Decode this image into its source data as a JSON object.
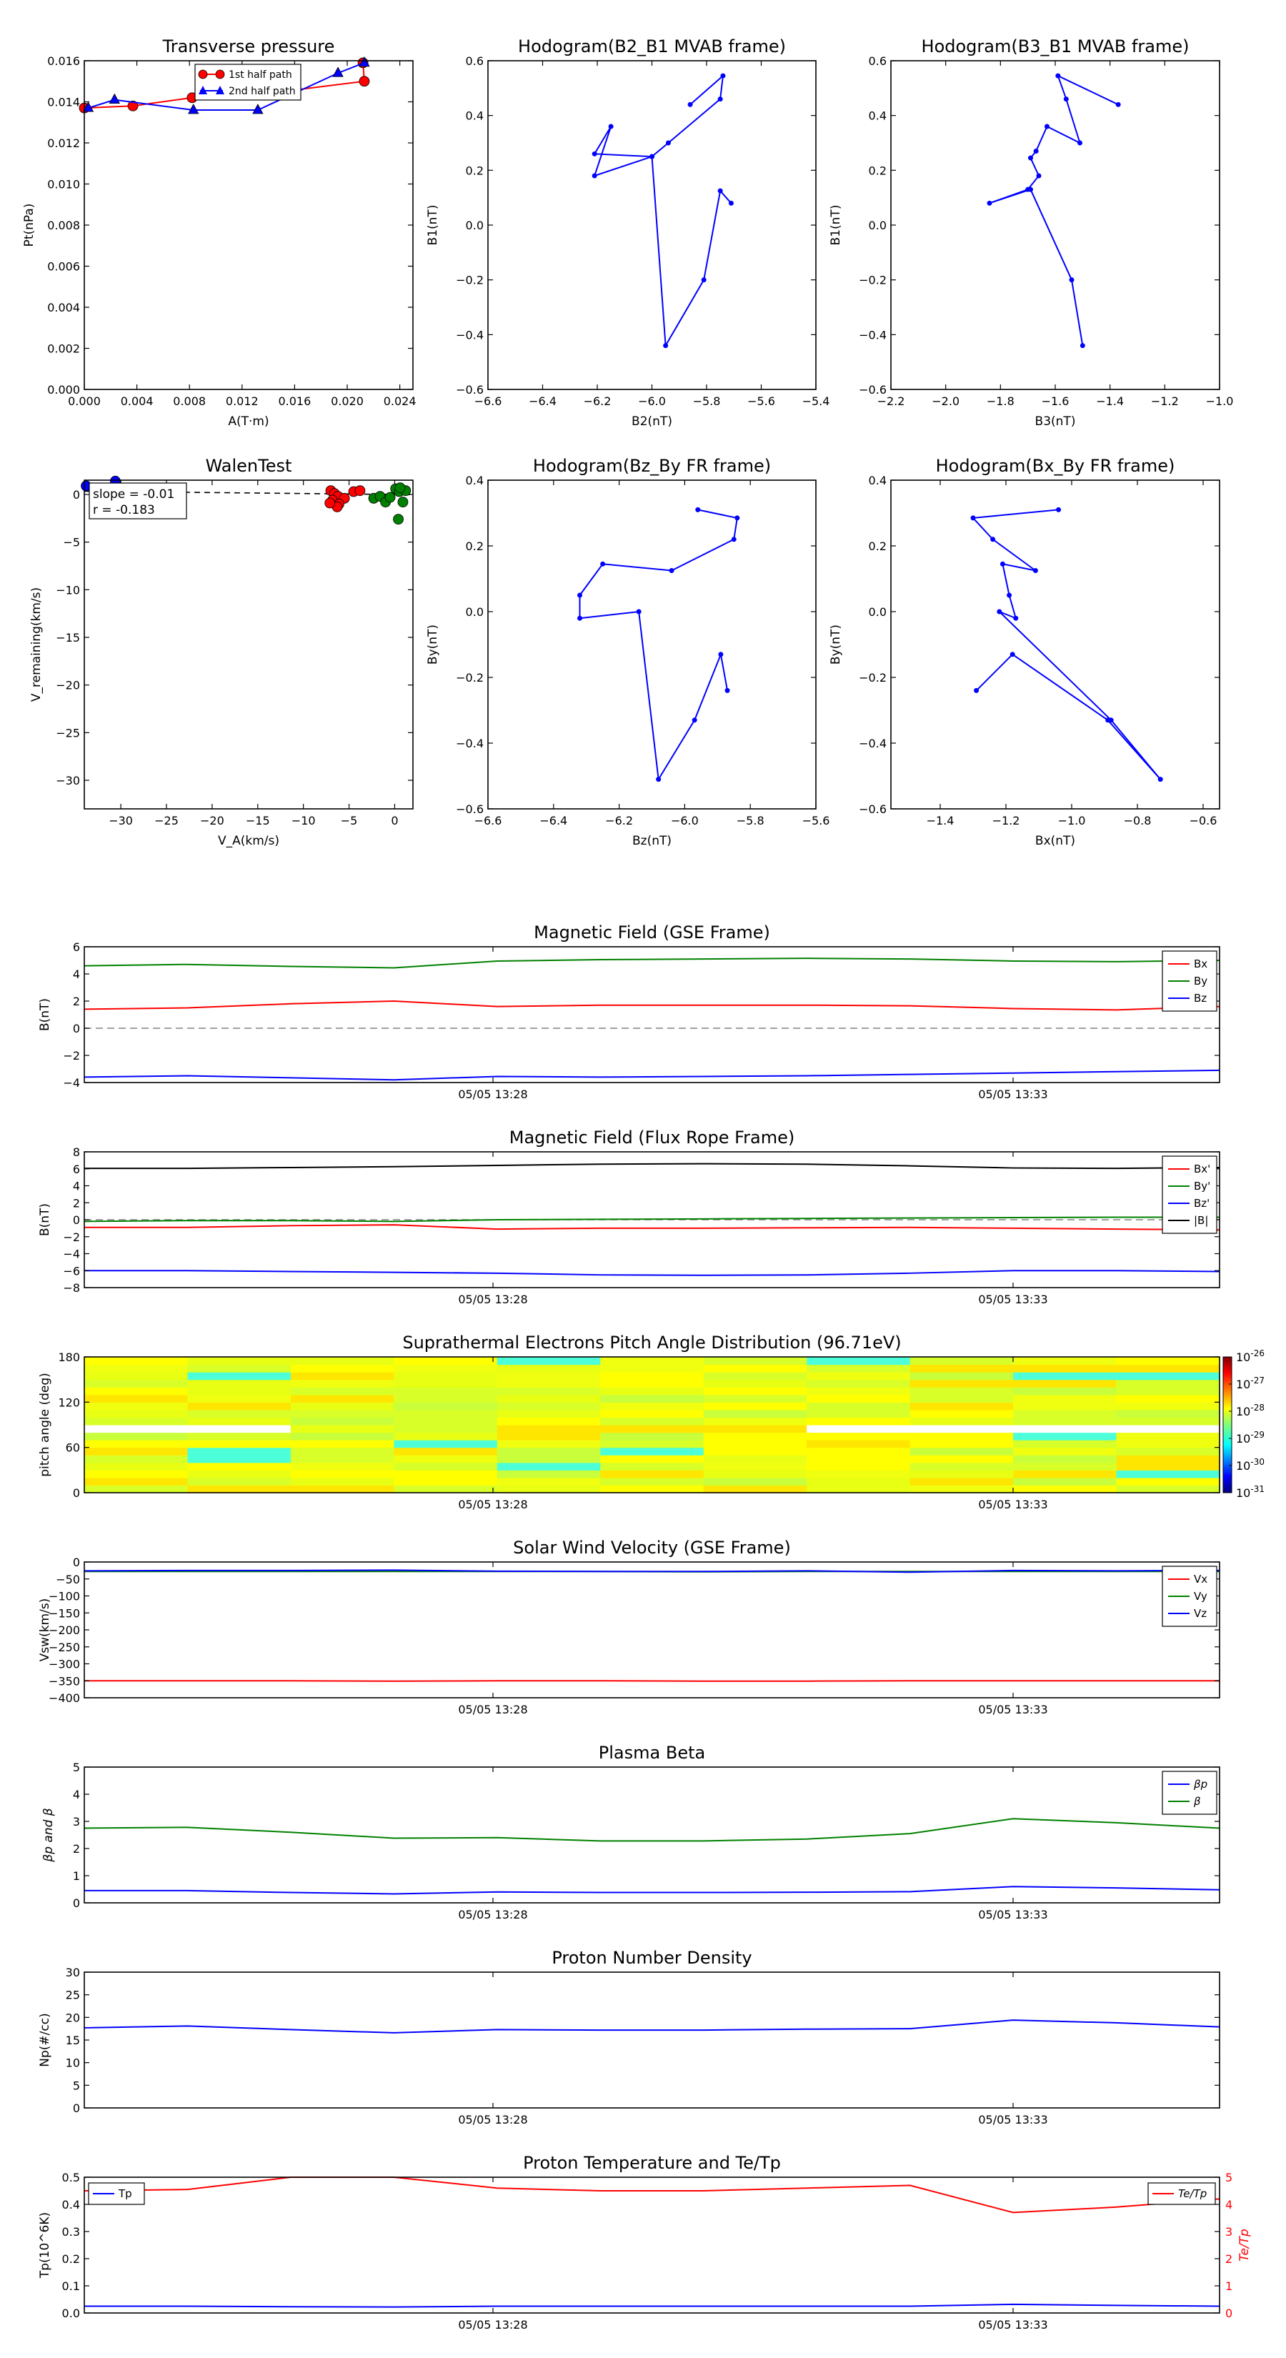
{
  "colors": {
    "red": "#ff0000",
    "green": "#008000",
    "blue": "#0000ff",
    "black": "#000000",
    "grey": "#808080"
  },
  "time_ticks": [
    "05/05 13:28",
    "05/05 13:33"
  ],
  "chart_data": [
    {
      "id": "transverse-pressure",
      "type": "line",
      "title": "Transverse pressure",
      "xlabel": "A(T·m)",
      "ylabel": "Pt(nPa)",
      "xlim": [
        0,
        0.025
      ],
      "ylim": [
        0,
        0.016
      ],
      "xticks": [
        0,
        0.004,
        0.008,
        0.012,
        0.016,
        0.02,
        0.024
      ],
      "xtick_labels": [
        "0.000",
        "0.004",
        "0.008",
        "0.012",
        "0.016",
        "0.020",
        "0.024"
      ],
      "yticks": [
        0,
        0.002,
        0.004,
        0.006,
        0.008,
        0.01,
        0.012,
        0.014,
        0.016
      ],
      "ytick_labels": [
        "0.000",
        "0.002",
        "0.004",
        "0.006",
        "0.008",
        "0.010",
        "0.012",
        "0.014",
        "0.016"
      ],
      "legend": "top-center",
      "series": [
        {
          "name": "1st half path",
          "color": "red",
          "marker": "circle",
          "x": [
            0.0,
            0.0037,
            0.0082,
            0.0138,
            0.0213,
            0.0212
          ],
          "y": [
            0.0137,
            0.0138,
            0.0142,
            0.0144,
            0.015,
            0.0159
          ]
        },
        {
          "name": "2nd half path",
          "color": "blue",
          "marker": "triangle",
          "x": [
            0.0213,
            0.0193,
            0.0132,
            0.0083,
            0.0023,
            0.0003
          ],
          "y": [
            0.0159,
            0.0154,
            0.0136,
            0.0136,
            0.0141,
            0.0137
          ]
        }
      ]
    },
    {
      "id": "hodogram-b2-b1",
      "type": "line",
      "title": "Hodogram(B2_B1 MVAB frame)",
      "xlabel": "B2(nT)",
      "ylabel": "B1(nT)",
      "xlim": [
        -6.6,
        -5.4
      ],
      "ylim": [
        -0.6,
        0.6
      ],
      "xticks": [
        -6.6,
        -6.4,
        -6.2,
        -6.0,
        -5.8,
        -5.6,
        -5.4
      ],
      "xtick_labels": [
        "−6.6",
        "−6.4",
        "−6.2",
        "−6.0",
        "−5.8",
        "−5.6",
        "−5.4"
      ],
      "yticks": [
        -0.6,
        -0.4,
        -0.2,
        0.0,
        0.2,
        0.4,
        0.6
      ],
      "ytick_labels": [
        "−0.6",
        "−0.4",
        "−0.2",
        "0.0",
        "0.2",
        "0.4",
        "0.6"
      ],
      "series": [
        {
          "name": "hodogram",
          "color": "blue",
          "marker": "dot",
          "x": [
            -5.86,
            -5.74,
            -5.75,
            -5.94,
            -6.0,
            -6.21,
            -6.15,
            -6.21,
            -6.0,
            -5.95,
            -5.81,
            -5.75,
            -5.71
          ],
          "y": [
            0.44,
            0.545,
            0.46,
            0.3,
            0.25,
            0.18,
            0.36,
            0.26,
            0.25,
            -0.44,
            -0.2,
            0.125,
            0.08
          ]
        }
      ]
    },
    {
      "id": "hodogram-b3-b1",
      "type": "line",
      "title": "Hodogram(B3_B1 MVAB frame)",
      "xlabel": "B3(nT)",
      "ylabel": "B1(nT)",
      "xlim": [
        -2.2,
        -1.0
      ],
      "ylim": [
        -0.6,
        0.6
      ],
      "xticks": [
        -2.2,
        -2.0,
        -1.8,
        -1.6,
        -1.4,
        -1.2,
        -1.0
      ],
      "xtick_labels": [
        "−2.2",
        "−2.0",
        "−1.8",
        "−1.6",
        "−1.4",
        "−1.2",
        "−1.0"
      ],
      "yticks": [
        -0.6,
        -0.4,
        -0.2,
        0.0,
        0.2,
        0.4,
        0.6
      ],
      "ytick_labels": [
        "−0.6",
        "−0.4",
        "−0.2",
        "0.0",
        "0.2",
        "0.4",
        "0.6"
      ],
      "series": [
        {
          "name": "hodogram",
          "color": "blue",
          "marker": "dot",
          "x": [
            -1.37,
            -1.59,
            -1.56,
            -1.51,
            -1.63,
            -1.67,
            -1.69,
            -1.66,
            -1.7,
            -1.84,
            -1.69,
            -1.54,
            -1.5
          ],
          "y": [
            0.44,
            0.545,
            0.46,
            0.3,
            0.36,
            0.27,
            0.245,
            0.18,
            0.13,
            0.08,
            0.13,
            -0.2,
            -0.44
          ]
        }
      ]
    },
    {
      "id": "walen-test",
      "type": "scatter",
      "title": "WalenTest",
      "xlabel": "V_A(km/s)",
      "ylabel": "V_remaining(km/s)",
      "xlim": [
        -34,
        2
      ],
      "ylim": [
        -33,
        1.5
      ],
      "xticks": [
        -30,
        -25,
        -20,
        -15,
        -10,
        -5,
        0
      ],
      "xtick_labels": [
        "−30",
        "−25",
        "−20",
        "−15",
        "−10",
        "−5",
        "0"
      ],
      "yticks": [
        -30,
        -25,
        -20,
        -15,
        -10,
        -5,
        0
      ],
      "ytick_labels": [
        "−30",
        "−25",
        "−20",
        "−15",
        "−10",
        "−5",
        "0"
      ],
      "annotation": {
        "slope": "slope = -0.01",
        "r": "r = -0.183"
      },
      "fit_line": {
        "x": [
          -34,
          2
        ],
        "y": [
          0.34,
          -0.02
        ]
      },
      "series": [
        {
          "name": "red",
          "color": "red",
          "marker": "circle",
          "x": [
            -7.0,
            -6.6,
            -6.2,
            -6.8,
            -5.5,
            -6.1,
            -4.5,
            -3.8,
            -6.3,
            -7.1
          ],
          "y": [
            0.4,
            0.1,
            -0.2,
            -0.6,
            -0.4,
            -1.0,
            0.3,
            0.4,
            -1.3,
            -0.9
          ]
        },
        {
          "name": "green",
          "color": "green",
          "marker": "circle",
          "x": [
            -2.3,
            -1.6,
            -1.0,
            -0.5,
            0.1,
            0.5,
            0.9,
            1.2,
            0.4,
            0.6
          ],
          "y": [
            -0.4,
            -0.2,
            -0.8,
            -0.3,
            0.6,
            0.3,
            -0.8,
            0.4,
            -2.6,
            0.7
          ]
        },
        {
          "name": "blue",
          "color": "blue",
          "marker": "circle",
          "x": [
            -33.8,
            -30.6
          ],
          "y": [
            0.9,
            1.4
          ]
        }
      ]
    },
    {
      "id": "hodogram-bz-by",
      "type": "line",
      "title": "Hodogram(Bz_By FR frame)",
      "xlabel": "Bz(nT)",
      "ylabel": "By(nT)",
      "xlim": [
        -6.6,
        -5.6
      ],
      "ylim": [
        -0.6,
        0.4
      ],
      "xticks": [
        -6.6,
        -6.4,
        -6.2,
        -6.0,
        -5.8,
        -5.6
      ],
      "xtick_labels": [
        "−6.6",
        "−6.4",
        "−6.2",
        "−6.0",
        "−5.8",
        "−5.6"
      ],
      "yticks": [
        -0.6,
        -0.4,
        -0.2,
        0.0,
        0.2,
        0.4
      ],
      "ytick_labels": [
        "−0.6",
        "−0.4",
        "−0.2",
        "0.0",
        "0.2",
        "0.4"
      ],
      "series": [
        {
          "name": "hodogram",
          "color": "blue",
          "marker": "dot",
          "x": [
            -5.96,
            -5.84,
            -5.85,
            -6.04,
            -6.25,
            -6.32,
            -6.32,
            -6.14,
            -6.08,
            -5.97,
            -5.89,
            -5.87
          ],
          "y": [
            0.31,
            0.285,
            0.22,
            0.125,
            0.145,
            0.05,
            -0.02,
            0.0,
            -0.51,
            -0.33,
            -0.13,
            -0.24
          ]
        }
      ]
    },
    {
      "id": "hodogram-bx-by",
      "type": "line",
      "title": "Hodogram(Bx_By FR frame)",
      "xlabel": "Bx(nT)",
      "ylabel": "By(nT)",
      "xlim": [
        -1.55,
        -0.55
      ],
      "ylim": [
        -0.6,
        0.4
      ],
      "xticks": [
        -1.4,
        -1.2,
        -1.0,
        -0.8,
        -0.6
      ],
      "xtick_labels": [
        "−1.4",
        "−1.2",
        "−1.0",
        "−0.8",
        "−0.6"
      ],
      "yticks": [
        -0.6,
        -0.4,
        -0.2,
        0.0,
        0.2,
        0.4
      ],
      "ytick_labels": [
        "−0.6",
        "−0.4",
        "−0.2",
        "0.0",
        "0.2",
        "0.4"
      ],
      "series": [
        {
          "name": "hodogram",
          "color": "blue",
          "marker": "dot",
          "x": [
            -1.04,
            -1.3,
            -1.24,
            -1.11,
            -1.21,
            -1.19,
            -1.17,
            -1.22,
            -0.88,
            -0.73,
            -0.89,
            -1.18,
            -1.29
          ],
          "y": [
            0.31,
            0.285,
            0.22,
            0.125,
            0.145,
            0.05,
            -0.02,
            0.0,
            -0.33,
            -0.51,
            -0.33,
            -0.13,
            -0.24
          ]
        }
      ]
    },
    {
      "id": "mag-gse",
      "type": "line",
      "title": "Magnetic Field (GSE Frame)",
      "ylabel": "B(nT)",
      "ylim": [
        -4,
        6
      ],
      "yticks": [
        -4,
        -2,
        0,
        2,
        4,
        6
      ],
      "ytick_labels": [
        "−4",
        "−2",
        "0",
        "2",
        "4",
        "6"
      ],
      "zero_line": true,
      "legend": "top-right",
      "series": [
        {
          "name": "Bx",
          "color": "red",
          "y": [
            1.4,
            1.5,
            1.8,
            2.0,
            1.6,
            1.7,
            1.7,
            1.7,
            1.65,
            1.45,
            1.35,
            1.6
          ]
        },
        {
          "name": "By",
          "color": "green",
          "y": [
            4.6,
            4.7,
            4.55,
            4.45,
            4.95,
            5.05,
            5.1,
            5.15,
            5.1,
            4.95,
            4.9,
            5.0
          ]
        },
        {
          "name": "Bz",
          "color": "blue",
          "y": [
            -3.6,
            -3.5,
            -3.65,
            -3.8,
            -3.55,
            -3.6,
            -3.55,
            -3.5,
            -3.4,
            -3.3,
            -3.2,
            -3.1
          ]
        }
      ]
    },
    {
      "id": "mag-fr",
      "type": "line",
      "title": "Magnetic Field (Flux Rope Frame)",
      "ylabel": "B(nT)",
      "ylim": [
        -8,
        8
      ],
      "yticks": [
        -8,
        -6,
        -4,
        -2,
        0,
        2,
        4,
        6,
        8
      ],
      "ytick_labels": [
        "−8",
        "−6",
        "−4",
        "−2",
        "0",
        "2",
        "4",
        "6",
        "8"
      ],
      "zero_line": true,
      "legend": "top-right",
      "series": [
        {
          "name": "Bx'",
          "color": "red",
          "y": [
            -0.9,
            -0.9,
            -0.7,
            -0.6,
            -1.1,
            -1.0,
            -1.0,
            -0.95,
            -0.9,
            -1.0,
            -1.1,
            -1.2
          ]
        },
        {
          "name": "By'",
          "color": "green",
          "y": [
            -0.2,
            -0.1,
            -0.1,
            -0.2,
            0.0,
            0.05,
            0.1,
            0.15,
            0.2,
            0.25,
            0.3,
            0.3
          ]
        },
        {
          "name": "Bz'",
          "color": "blue",
          "y": [
            -6.0,
            -6.0,
            -6.1,
            -6.2,
            -6.3,
            -6.5,
            -6.55,
            -6.5,
            -6.3,
            -6.0,
            -6.0,
            -6.1
          ]
        },
        {
          "name": "|B|",
          "color": "black",
          "y": [
            6.05,
            6.05,
            6.15,
            6.25,
            6.4,
            6.55,
            6.6,
            6.55,
            6.35,
            6.1,
            6.05,
            6.15
          ]
        }
      ]
    },
    {
      "id": "pad",
      "type": "heatmap",
      "title": "Suprathermal Electrons Pitch Angle Distribution (96.71eV)",
      "ylabel": "pitch angle (deg)",
      "ylim": [
        0,
        180
      ],
      "yticks": [
        0,
        60,
        120,
        180
      ],
      "ytick_labels": [
        "0",
        "60",
        "120",
        "180"
      ],
      "colorbar_labels": [
        "10^-26",
        "10^-27",
        "10^-28",
        "10^-29",
        "10^-30",
        "10^-31"
      ],
      "colorbar_exponents": [
        "-26",
        "-27",
        "-28",
        "-29",
        "-30",
        "-31"
      ],
      "colorbar_range": [
        -31,
        -26
      ]
    },
    {
      "id": "velocity",
      "type": "line",
      "title": "Solar Wind Velocity (GSE Frame)",
      "ylabel": "Vsw(km/s)",
      "ylim": [
        -400,
        0
      ],
      "yticks": [
        -400,
        -350,
        -300,
        -250,
        -200,
        -150,
        -100,
        -50,
        0
      ],
      "ytick_labels": [
        "−400",
        "−350",
        "−300",
        "−250",
        "−200",
        "−150",
        "−100",
        "−50",
        "0"
      ],
      "legend": "top-right",
      "series": [
        {
          "name": "Vx",
          "color": "red",
          "y": [
            -350,
            -350,
            -350,
            -351,
            -350,
            -350,
            -351,
            -351,
            -350,
            -350,
            -350,
            -350
          ]
        },
        {
          "name": "Vy",
          "color": "green",
          "y": [
            -28,
            -28,
            -28,
            -28,
            -28,
            -28,
            -29,
            -28,
            -28,
            -28,
            -28,
            -28
          ]
        },
        {
          "name": "Vz",
          "color": "blue",
          "y": [
            -26,
            -25,
            -25,
            -24,
            -27,
            -28,
            -28,
            -26,
            -30,
            -25,
            -26,
            -25
          ]
        }
      ]
    },
    {
      "id": "beta",
      "type": "line",
      "title": "Plasma Beta",
      "ylabel": "βp and β",
      "ylim": [
        0,
        5
      ],
      "yticks": [
        0,
        1,
        2,
        3,
        4,
        5
      ],
      "ytick_labels": [
        "0",
        "1",
        "2",
        "3",
        "4",
        "5"
      ],
      "legend": "top-right",
      "series": [
        {
          "name": "βp",
          "color": "blue",
          "y": [
            0.45,
            0.45,
            0.38,
            0.33,
            0.4,
            0.38,
            0.38,
            0.39,
            0.41,
            0.6,
            0.55,
            0.48
          ]
        },
        {
          "name": "β",
          "color": "green",
          "y": [
            2.75,
            2.78,
            2.6,
            2.38,
            2.4,
            2.28,
            2.28,
            2.35,
            2.55,
            3.1,
            2.95,
            2.75
          ]
        }
      ]
    },
    {
      "id": "density",
      "type": "line",
      "title": "Proton Number Density",
      "ylabel": "Np(#/cc)",
      "ylim": [
        0,
        30
      ],
      "yticks": [
        0,
        5,
        10,
        15,
        20,
        25,
        30
      ],
      "ytick_labels": [
        "0",
        "5",
        "10",
        "15",
        "20",
        "25",
        "30"
      ],
      "series": [
        {
          "name": "Np",
          "color": "blue",
          "y": [
            17.7,
            18.1,
            17.3,
            16.6,
            17.3,
            17.2,
            17.2,
            17.4,
            17.5,
            19.4,
            18.8,
            17.9
          ]
        }
      ]
    },
    {
      "id": "temperature",
      "type": "line",
      "title": "Proton Temperature and Te/Tp",
      "ylabel": "Tp(10^6K)",
      "ylabel_right": "Te/Tp",
      "ylim": [
        0,
        0.5
      ],
      "yticks": [
        0,
        0.1,
        0.2,
        0.3,
        0.4,
        0.5
      ],
      "ytick_labels": [
        "0.0",
        "0.1",
        "0.2",
        "0.3",
        "0.4",
        "0.5"
      ],
      "ylim_right": [
        0,
        5
      ],
      "yticks_right": [
        0,
        1,
        2,
        3,
        4,
        5
      ],
      "ytick_labels_right": [
        "0",
        "1",
        "2",
        "3",
        "4",
        "5"
      ],
      "legend_left": "Tp",
      "legend_right": "Te/Tp",
      "series": [
        {
          "name": "Tp",
          "color": "blue",
          "axis": "left",
          "y": [
            0.025,
            0.025,
            0.023,
            0.022,
            0.025,
            0.025,
            0.025,
            0.025,
            0.025,
            0.032,
            0.028,
            0.025
          ]
        },
        {
          "name": "Te/Tp",
          "color": "red",
          "axis": "right",
          "y": [
            4.5,
            4.55,
            5.0,
            5.0,
            4.6,
            4.5,
            4.5,
            4.6,
            4.7,
            3.7,
            3.9,
            4.2
          ]
        }
      ]
    }
  ]
}
